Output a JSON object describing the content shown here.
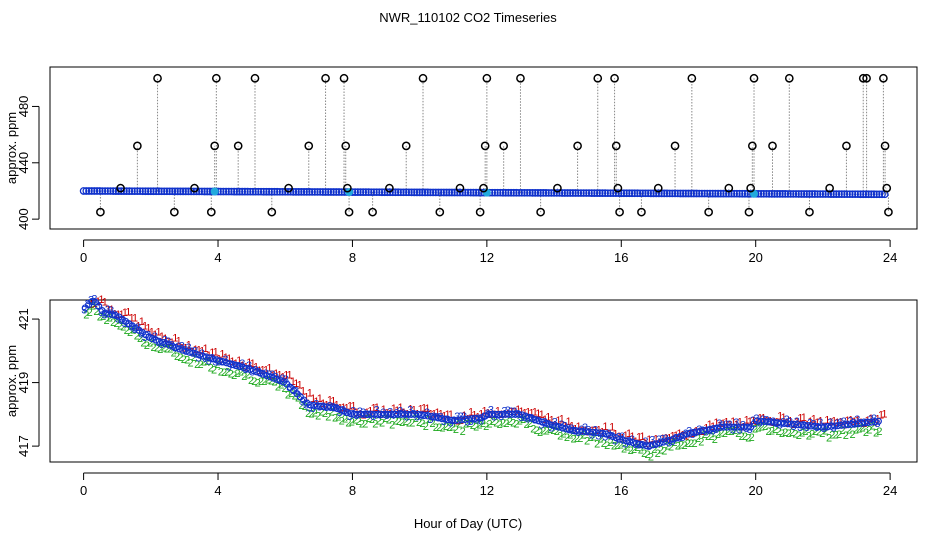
{
  "chart_data": {
    "title": "NWR_110102  CO2 Timeseries",
    "xlabel": "Hour of Day (UTC)",
    "colors": {
      "circle": "#000000",
      "flagged_line": "#888888",
      "series_blue": "#1133cc",
      "series_cyan": "#22aadd",
      "label_red": "#cc0000",
      "label_green": "#22aa22",
      "label_blue": "#1133cc"
    },
    "charts": [
      {
        "type": "scatter",
        "ylabel": "approx. ppm",
        "xlim": [
          -1.0,
          24.8
        ],
        "ylim": [
          393,
          508
        ],
        "xticks": [
          0,
          4,
          8,
          12,
          16,
          20,
          24
        ],
        "yticks": [
          400,
          440,
          480
        ],
        "yticklabels": [
          "400",
          "440",
          "480"
        ],
        "baseline": {
          "start": 420.0,
          "end": 417.6
        },
        "spikes": [
          [
            0.5,
            405
          ],
          [
            1.1,
            422
          ],
          [
            1.6,
            452
          ],
          [
            2.2,
            500
          ],
          [
            2.7,
            405
          ],
          [
            3.3,
            422
          ],
          [
            3.8,
            405
          ],
          [
            3.9,
            452
          ],
          [
            3.95,
            500
          ],
          [
            4.6,
            452
          ],
          [
            5.1,
            500
          ],
          [
            5.6,
            405
          ],
          [
            6.1,
            422
          ],
          [
            6.7,
            452
          ],
          [
            7.2,
            500
          ],
          [
            7.75,
            500
          ],
          [
            7.8,
            452
          ],
          [
            7.85,
            422
          ],
          [
            7.9,
            405
          ],
          [
            8.6,
            405
          ],
          [
            9.1,
            422
          ],
          [
            9.6,
            452
          ],
          [
            10.1,
            500
          ],
          [
            10.6,
            405
          ],
          [
            11.2,
            422
          ],
          [
            11.8,
            405
          ],
          [
            11.9,
            422
          ],
          [
            11.95,
            452
          ],
          [
            12.0,
            500
          ],
          [
            12.5,
            452
          ],
          [
            13.0,
            500
          ],
          [
            13.6,
            405
          ],
          [
            14.1,
            422
          ],
          [
            14.7,
            452
          ],
          [
            15.3,
            500
          ],
          [
            15.8,
            500
          ],
          [
            15.85,
            452
          ],
          [
            15.9,
            422
          ],
          [
            15.95,
            405
          ],
          [
            16.6,
            405
          ],
          [
            17.1,
            422
          ],
          [
            17.6,
            452
          ],
          [
            18.1,
            500
          ],
          [
            18.6,
            405
          ],
          [
            19.2,
            422
          ],
          [
            19.8,
            405
          ],
          [
            19.85,
            422
          ],
          [
            19.9,
            452
          ],
          [
            19.95,
            500
          ],
          [
            20.5,
            452
          ],
          [
            21.0,
            500
          ],
          [
            21.6,
            405
          ],
          [
            22.2,
            422
          ],
          [
            22.7,
            452
          ],
          [
            23.2,
            500
          ],
          [
            23.3,
            500
          ],
          [
            23.8,
            500
          ],
          [
            23.85,
            452
          ],
          [
            23.9,
            422
          ],
          [
            23.95,
            405
          ]
        ],
        "cyan_points": [
          3.9,
          7.9,
          12.0,
          19.95
        ]
      },
      {
        "type": "scatter",
        "ylabel": "approx. ppm",
        "xlim": [
          -1.0,
          24.8
        ],
        "ylim": [
          416.5,
          421.6
        ],
        "xticks": [
          0,
          4,
          8,
          12,
          16,
          20,
          24
        ],
        "yticks": [
          417,
          419,
          421
        ],
        "yticklabels": [
          "417",
          "419",
          "421"
        ],
        "point_labels": [
          "1",
          "2",
          "3"
        ],
        "trend": [
          [
            0.0,
            421.3
          ],
          [
            0.3,
            421.6
          ],
          [
            0.6,
            421.2
          ],
          [
            1.0,
            421.1
          ],
          [
            2.0,
            420.4
          ],
          [
            3.0,
            420.0
          ],
          [
            4.0,
            419.7
          ],
          [
            5.0,
            419.4
          ],
          [
            6.0,
            419.0
          ],
          [
            6.7,
            418.3
          ],
          [
            7.5,
            418.2
          ],
          [
            8.0,
            418.0
          ],
          [
            9.0,
            418.0
          ],
          [
            10.0,
            418.0
          ],
          [
            11.0,
            417.8
          ],
          [
            11.9,
            417.9
          ],
          [
            12.0,
            418.0
          ],
          [
            13.0,
            418.0
          ],
          [
            13.8,
            417.7
          ],
          [
            14.5,
            417.5
          ],
          [
            15.5,
            417.4
          ],
          [
            16.0,
            417.2
          ],
          [
            16.8,
            417.0
          ],
          [
            17.5,
            417.2
          ],
          [
            18.0,
            417.4
          ],
          [
            19.0,
            417.6
          ],
          [
            19.9,
            417.6
          ],
          [
            20.0,
            417.8
          ],
          [
            21.0,
            417.7
          ],
          [
            22.0,
            417.6
          ],
          [
            23.0,
            417.7
          ],
          [
            23.8,
            417.8
          ]
        ]
      }
    ]
  }
}
